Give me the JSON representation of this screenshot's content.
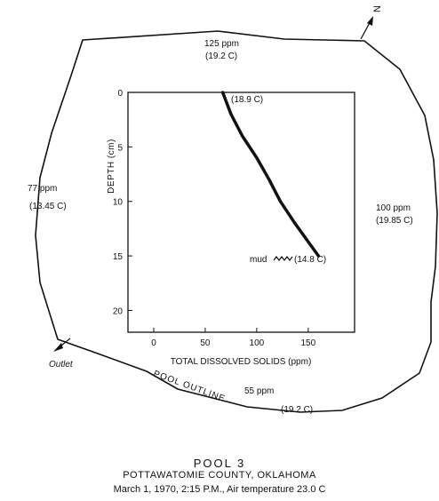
{
  "north_label": "N",
  "stations": [
    {
      "ppm": "125 ppm",
      "temp": "(19.2 C)"
    },
    {
      "ppm": "77 ppm",
      "temp": "(13.45 C)"
    },
    {
      "ppm": "100 ppm",
      "temp": "(19.85 C)"
    },
    {
      "ppm": "55 ppm",
      "temp": "(19.2 C)"
    }
  ],
  "outlet_label": "Outlet",
  "pool_outline_label": "POOL OUTLINE",
  "profile_labels": {
    "top_temp": "(18.9 C)",
    "bottom_temp": "(14.8 C)",
    "mud": "mud"
  },
  "axes": {
    "xlabel": "TOTAL DISSOLVED SOLIDS (ppm)",
    "ylabel": "DEPTH (cm)",
    "x_ticks": [
      "0",
      "50",
      "100",
      "150"
    ],
    "y_ticks": [
      "0",
      "5",
      "10",
      "15",
      "20"
    ]
  },
  "caption": {
    "title": "POOL 3",
    "county": "POTTAWATOMIE COUNTY, OKLAHOMA",
    "date": "March 1, 1970, 2:15 P.M., Air temperature 23.0 C"
  },
  "chart_data": {
    "type": "line",
    "xlabel": "TOTAL DISSOLVED SOLIDS (ppm)",
    "ylabel": "DEPTH (cm)",
    "xlim": [
      -25,
      195
    ],
    "ylim": [
      0,
      22
    ],
    "y_inverted": true,
    "series": [
      {
        "x": [
          67,
          75,
          86,
          100,
          112,
          123,
          137,
          150,
          160
        ],
        "y": [
          0,
          2,
          4,
          6,
          8,
          10,
          12,
          13.7,
          15
        ]
      }
    ]
  }
}
